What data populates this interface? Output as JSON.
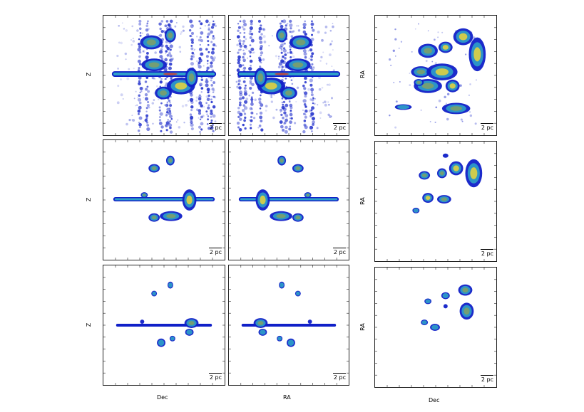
{
  "labels": {
    "z": "Z",
    "ra": "RA",
    "dec": "Dec",
    "scale": "2 pc"
  },
  "colors": {
    "low": "#1020c8",
    "mid": "#2fa0c8",
    "high": "#e0d040",
    "peak": "#d83020",
    "frame": "#222222"
  }
}
